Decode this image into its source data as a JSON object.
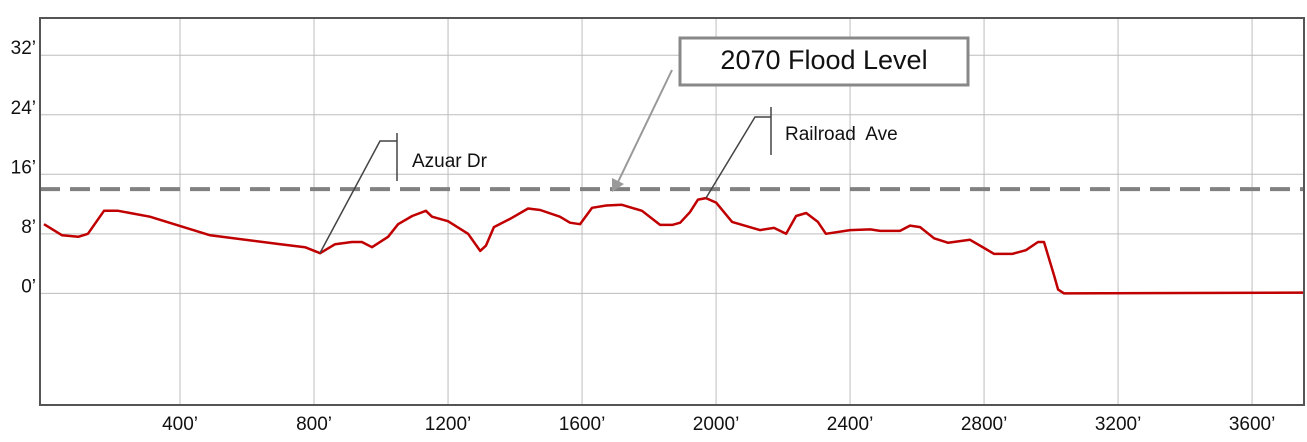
{
  "chart_data": {
    "type": "line",
    "x": [
      -6,
      48,
      96,
      125,
      173,
      215,
      310,
      490,
      700,
      773,
      818,
      863,
      913,
      943,
      973,
      1021,
      1051,
      1093,
      1134,
      1152,
      1200,
      1260,
      1296,
      1313,
      1337,
      1385,
      1439,
      1475,
      1534,
      1564,
      1594,
      1630,
      1672,
      1719,
      1779,
      1833,
      1869,
      1893,
      1922,
      1946,
      1970,
      2000,
      2048,
      2131,
      2173,
      2209,
      2239,
      2269,
      2304,
      2328,
      2400,
      2460,
      2490,
      2549,
      2579,
      2609,
      2651,
      2693,
      2758,
      2800,
      2830,
      2884,
      2925,
      2961,
      2979,
      3009,
      3021,
      3039,
      3755
    ],
    "series": [
      {
        "color": "#c00000",
        "values": [
          9.3,
          7.8,
          7.6,
          8,
          11.1,
          11.1,
          10.3,
          7.8,
          6.6,
          6.2,
          5.4,
          6.6,
          6.9,
          6.9,
          6.2,
          7.6,
          9.3,
          10.4,
          11.1,
          10.3,
          9.7,
          8,
          5.7,
          6.4,
          8.9,
          10,
          11.4,
          11.2,
          10.3,
          9.5,
          9.3,
          11.5,
          11.8,
          11.9,
          11.1,
          9.2,
          9.2,
          9.5,
          10.9,
          12.6,
          12.8,
          12.2,
          9.6,
          8.5,
          8.8,
          8,
          10.4,
          10.8,
          9.6,
          8,
          8.5,
          8.6,
          8.4,
          8.4,
          9.1,
          8.9,
          7.4,
          6.8,
          7.2,
          6.1,
          5.3,
          5.3,
          5.8,
          6.9,
          6.9,
          2.4,
          0.5,
          0,
          0.1
        ]
      }
    ],
    "reference_line": {
      "label": "2070 Flood Level",
      "value": 14,
      "color": "#808080"
    },
    "annotations": [
      "Azuar Dr",
      "Railroad  Ave"
    ],
    "xlim": [
      -18,
      3755
    ],
    "ylim": [
      -15,
      37
    ],
    "xticks": [
      {
        "value": 400,
        "label": "400’"
      },
      {
        "value": 800,
        "label": "800’"
      },
      {
        "value": 1200,
        "label": "1200’"
      },
      {
        "value": 1600,
        "label": "1600’"
      },
      {
        "value": 2000,
        "label": "2000’"
      },
      {
        "value": 2400,
        "label": "2400’"
      },
      {
        "value": 2800,
        "label": "2800’"
      },
      {
        "value": 3200,
        "label": "3200’"
      },
      {
        "value": 3600,
        "label": "3600’"
      }
    ],
    "yticks": [
      {
        "value": 0,
        "label": "0’"
      },
      {
        "value": 8,
        "label": "8’"
      },
      {
        "value": 16,
        "label": "16’"
      },
      {
        "value": 24,
        "label": "24’"
      },
      {
        "value": 32,
        "label": "32’"
      }
    ],
    "grid": true
  }
}
